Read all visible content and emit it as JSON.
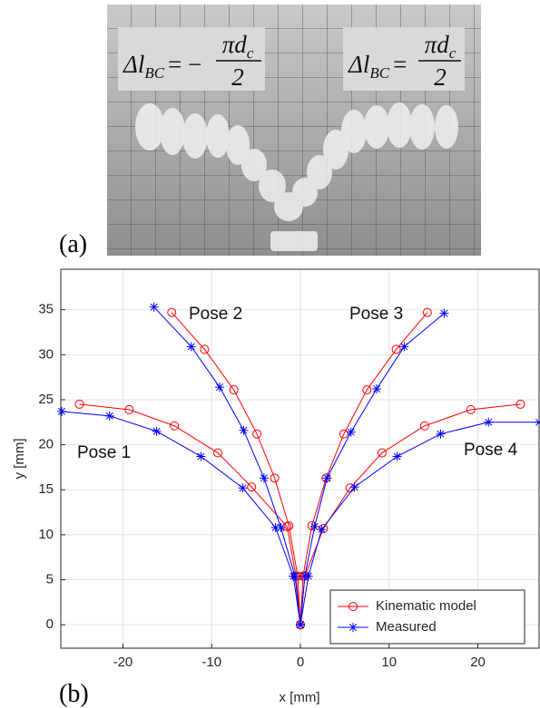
{
  "photo": {
    "label": "(a)",
    "formulas": [
      {
        "lhs": "Δl",
        "lhs_sub": "BC",
        "sign": "= −",
        "num": "πd",
        "num_sub": "c",
        "den": "2"
      },
      {
        "lhs": "Δl",
        "lhs_sub": "BC",
        "sign": "=",
        "num": "πd",
        "num_sub": "c",
        "den": "2"
      }
    ]
  },
  "chart_data": {
    "type": "line",
    "label": "(b)",
    "xlabel": "x [mm]",
    "ylabel": "y [mm]",
    "xlim": [
      -27,
      26.9
    ],
    "ylim": [
      -2.6,
      39.5
    ],
    "xticks": [
      -20,
      -10,
      0,
      10,
      20
    ],
    "yticks": [
      0,
      5,
      10,
      15,
      20,
      25,
      30,
      35
    ],
    "grid": true,
    "legend": "lower right",
    "annotations": [
      "Pose 1",
      "Pose 2",
      "Pose 3",
      "Pose 4"
    ],
    "series": [
      {
        "name": "Kinematic model",
        "color": "#ff0000",
        "marker": "o",
        "x": [
          0,
          -0.5,
          -1.5,
          -5.5,
          -9.3,
          -14.2,
          -19.3,
          -24.9,
          null,
          0,
          -0.3,
          -1.3,
          -2.9,
          -4.9,
          -7.5,
          -10.8,
          -14.5,
          null,
          0,
          0.3,
          1.3,
          2.9,
          4.9,
          7.5,
          10.8,
          14.3,
          null,
          0,
          0.5,
          2.6,
          5.6,
          9.2,
          14.0,
          19.2,
          24.8
        ],
        "values": [
          0,
          5.4,
          10.9,
          15.3,
          19.1,
          22.1,
          23.9,
          24.5,
          null,
          0,
          5.4,
          11.0,
          16.3,
          21.2,
          26.1,
          30.6,
          34.7,
          null,
          0,
          5.4,
          11.0,
          16.3,
          21.2,
          26.1,
          30.6,
          34.7,
          null,
          0,
          5.4,
          10.7,
          15.2,
          19.1,
          22.1,
          23.9,
          24.5
        ]
      },
      {
        "name": "Measured",
        "color": "#0000ff",
        "marker": "*",
        "x": [
          0,
          -0.8,
          -2.8,
          -6.5,
          -11.2,
          -16.2,
          -21.5,
          -26.9,
          null,
          0,
          -0.6,
          -2.2,
          -4.1,
          -6.4,
          -9.1,
          -12.3,
          -16.5,
          null,
          0,
          0.5,
          1.6,
          3.0,
          5.7,
          8.6,
          11.7,
          16.2,
          null,
          0,
          0.9,
          2.4,
          6.1,
          10.9,
          15.8,
          21.2,
          26.9
        ],
        "values": [
          0,
          5.4,
          10.8,
          15.2,
          18.7,
          21.5,
          23.2,
          23.7,
          null,
          0,
          5.4,
          10.8,
          16.3,
          21.6,
          26.4,
          30.9,
          35.3,
          null,
          0,
          5.4,
          10.9,
          16.3,
          21.4,
          26.2,
          30.9,
          34.6,
          null,
          0,
          5.4,
          10.6,
          15.3,
          18.7,
          21.2,
          22.5,
          22.5
        ]
      }
    ]
  }
}
